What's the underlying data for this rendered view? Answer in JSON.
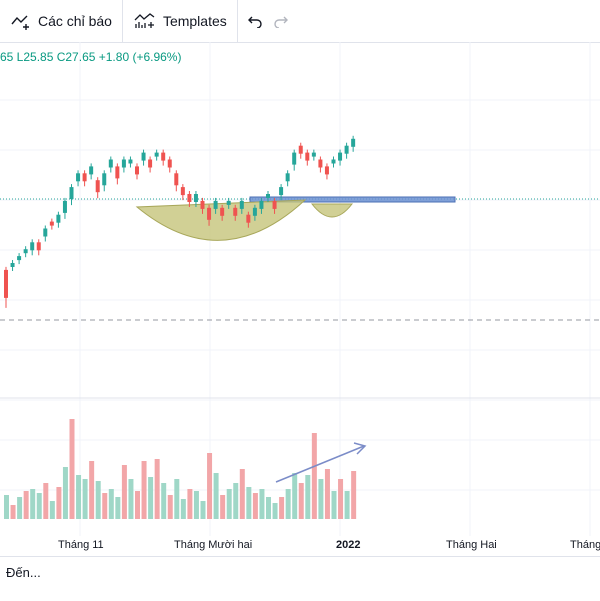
{
  "toolbar": {
    "indicators_label": "Các chỉ báo",
    "templates_label": "Templates"
  },
  "legend": {
    "ohlc_text": "65  L25.85  C27.65  +1.80 (+6.96%)"
  },
  "time_axis": [
    "Tháng 11",
    "Tháng Mười hai",
    "2022",
    "Tháng Hai",
    "Tháng"
  ],
  "bottom": {
    "goto_label": "Đến..."
  },
  "colors": {
    "up": "#26a69a",
    "down": "#ef5350",
    "vol_up": "#9fd7c7",
    "vol_down": "#f2a6a8",
    "cup_fill": "#c5c47a",
    "resistance": "#6b8fd1",
    "arrow": "#7b8cc8"
  },
  "chart_data": {
    "type": "candlestick",
    "candles": [
      [
        0,
        9,
        7
      ],
      [
        1,
        10,
        1
      ],
      [
        1,
        11,
        1
      ],
      [
        1,
        12,
        1
      ],
      [
        1,
        13,
        2
      ],
      [
        0,
        13,
        2
      ],
      [
        1,
        15,
        2
      ],
      [
        0,
        16,
        1
      ],
      [
        1,
        17,
        2
      ],
      [
        1,
        19,
        3
      ],
      [
        1,
        21,
        3
      ],
      [
        1,
        23,
        2
      ],
      [
        0,
        23,
        2
      ],
      [
        1,
        24,
        2
      ],
      [
        0,
        22,
        3
      ],
      [
        1,
        23,
        3
      ],
      [
        1,
        25,
        2
      ],
      [
        0,
        24,
        3
      ],
      [
        1,
        25,
        2
      ],
      [
        1,
        25,
        1
      ],
      [
        0,
        24,
        2
      ],
      [
        1,
        26,
        2
      ],
      [
        0,
        25,
        2
      ],
      [
        1,
        26,
        1
      ],
      [
        0,
        26,
        2
      ],
      [
        0,
        25,
        2
      ],
      [
        0,
        23,
        3
      ],
      [
        0,
        21,
        2
      ],
      [
        0,
        20,
        2
      ],
      [
        1,
        20,
        2
      ],
      [
        0,
        19,
        2
      ],
      [
        0,
        18,
        3
      ],
      [
        1,
        19,
        2
      ],
      [
        0,
        18,
        2
      ],
      [
        1,
        19,
        1
      ],
      [
        0,
        18,
        2
      ],
      [
        1,
        19,
        2
      ],
      [
        0,
        17,
        2
      ],
      [
        1,
        18,
        2
      ],
      [
        1,
        19,
        2
      ],
      [
        1,
        20,
        1
      ],
      [
        0,
        19,
        2
      ],
      [
        1,
        21,
        2
      ],
      [
        1,
        23,
        2
      ],
      [
        1,
        26,
        3
      ],
      [
        0,
        27,
        2
      ],
      [
        0,
        26,
        2
      ],
      [
        1,
        26,
        1
      ],
      [
        0,
        25,
        2
      ],
      [
        0,
        24,
        2
      ],
      [
        1,
        25,
        1
      ],
      [
        1,
        26,
        2
      ],
      [
        1,
        27,
        2
      ],
      [
        1,
        28,
        2
      ]
    ],
    "volumes": [
      [
        0,
        24
      ],
      [
        1,
        14
      ],
      [
        0,
        22
      ],
      [
        1,
        28
      ],
      [
        0,
        30
      ],
      [
        0,
        26
      ],
      [
        1,
        36
      ],
      [
        0,
        18
      ],
      [
        1,
        32
      ],
      [
        0,
        52
      ],
      [
        1,
        100
      ],
      [
        0,
        44
      ],
      [
        0,
        40
      ],
      [
        1,
        58
      ],
      [
        0,
        38
      ],
      [
        1,
        26
      ],
      [
        0,
        30
      ],
      [
        0,
        22
      ],
      [
        1,
        54
      ],
      [
        0,
        40
      ],
      [
        1,
        28
      ],
      [
        1,
        58
      ],
      [
        0,
        42
      ],
      [
        1,
        60
      ],
      [
        0,
        36
      ],
      [
        1,
        24
      ],
      [
        0,
        40
      ],
      [
        0,
        20
      ],
      [
        1,
        30
      ],
      [
        0,
        28
      ],
      [
        0,
        18
      ],
      [
        1,
        66
      ],
      [
        0,
        46
      ],
      [
        1,
        24
      ],
      [
        0,
        30
      ],
      [
        0,
        36
      ],
      [
        1,
        50
      ],
      [
        0,
        32
      ],
      [
        1,
        26
      ],
      [
        0,
        30
      ],
      [
        0,
        22
      ],
      [
        0,
        16
      ],
      [
        1,
        22
      ],
      [
        0,
        30
      ],
      [
        0,
        46
      ],
      [
        1,
        36
      ],
      [
        0,
        44
      ],
      [
        1,
        86
      ],
      [
        0,
        40
      ],
      [
        1,
        50
      ],
      [
        0,
        28
      ],
      [
        1,
        40
      ],
      [
        0,
        28
      ],
      [
        1,
        48
      ]
    ]
  }
}
